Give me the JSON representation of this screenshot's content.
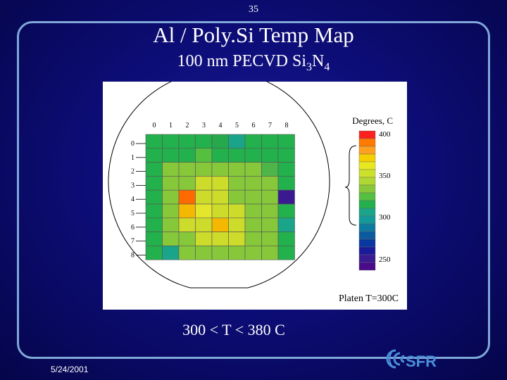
{
  "slide_number": "35",
  "title": "Al / Poly.Si Temp Map",
  "subtitle": {
    "main": "100 nm PECVD Si",
    "sub1": "3",
    "mid": "N",
    "sub2": "4"
  },
  "chart": {
    "col_labels": [
      "0",
      "1",
      "2",
      "3",
      "4",
      "5",
      "6",
      "7",
      "8"
    ],
    "row_labels": [
      "0",
      "1",
      "2",
      "3",
      "4",
      "5",
      "6",
      "7",
      "8"
    ],
    "grid_colors": [
      [
        "#22b14c",
        "#22b14c",
        "#22b14c",
        "#22b14c",
        "#26a84c",
        "#1aa58a",
        "#22b14c",
        "#22b14c",
        "#22b14c"
      ],
      [
        "#22b14c",
        "#22b14c",
        "#22b14c",
        "#55c040",
        "#22b14c",
        "#22b14c",
        "#22b14c",
        "#22b14c",
        "#22b14c"
      ],
      [
        "#22b14c",
        "#86c83a",
        "#86c83a",
        "#86c83a",
        "#86c83a",
        "#86c83a",
        "#86c83a",
        "#4db54a",
        "#22b14c"
      ],
      [
        "#22b14c",
        "#86c83a",
        "#86c83a",
        "#cddc2a",
        "#cddc2a",
        "#86c83a",
        "#86c83a",
        "#86c83a",
        "#22b14c"
      ],
      [
        "#22b14c",
        "#86c83a",
        "#ff6a00",
        "#cddc2a",
        "#cddc2a",
        "#86c83a",
        "#86c83a",
        "#86c83a",
        "#3a1a90"
      ],
      [
        "#22b14c",
        "#86c83a",
        "#f5b800",
        "#e3e62a",
        "#cddc2a",
        "#cddc2a",
        "#86c83a",
        "#86c83a",
        "#22b14c"
      ],
      [
        "#22b14c",
        "#86c83a",
        "#cddc2a",
        "#cddc2a",
        "#f5b800",
        "#cddc2a",
        "#86c83a",
        "#86c83a",
        "#1aa58a"
      ],
      [
        "#22b14c",
        "#86c83a",
        "#86c83a",
        "#cddc2a",
        "#cddc2a",
        "#cddc2a",
        "#86c83a",
        "#86c83a",
        "#22b14c"
      ],
      [
        "#22b14c",
        "#1aa58a",
        "#86c83a",
        "#86c83a",
        "#86c83a",
        "#86c83a",
        "#86c83a",
        "#86c83a",
        "#22b14c"
      ]
    ],
    "legend_title": "Degrees, C",
    "legend_colors": [
      "#ff2020",
      "#ff7a00",
      "#ffa020",
      "#f5d000",
      "#e8e820",
      "#cde12a",
      "#b0d832",
      "#86c83a",
      "#55c040",
      "#22b14c",
      "#1aa58a",
      "#129a9a",
      "#0d7aa0",
      "#0a5aa0",
      "#0838a0",
      "#1a1a9a",
      "#3a1a90",
      "#4a0a8a"
    ],
    "legend_ticks": [
      "400",
      "350",
      "300",
      "250"
    ],
    "platen_label": "Platen T=300C"
  },
  "range_text": "300 < T < 380 C",
  "date": "5/24/2001",
  "logo_text": "SFR",
  "colors": {
    "background": "#0d0d78",
    "frame": "#7fa8d8",
    "logo": "#4a8fd8"
  }
}
